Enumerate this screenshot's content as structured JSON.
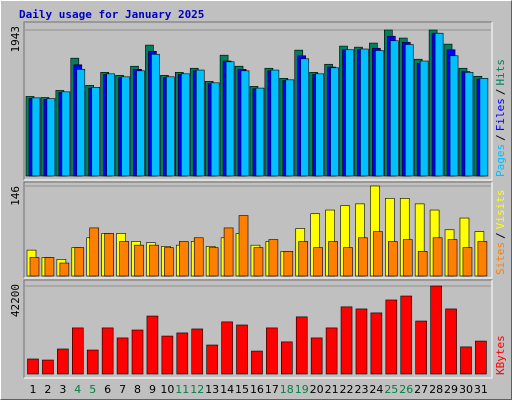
{
  "title": "Daily usage for January 2025",
  "legend_separator": "/",
  "weekend_index": [
    3,
    4,
    10,
    11,
    17,
    18,
    24,
    25
  ],
  "weekday_color": "#000000",
  "weekend_color": "#008040",
  "chart_data": [
    {
      "type": "bar",
      "ylim": [
        0,
        1943
      ],
      "yticks": [
        1943
      ],
      "series": [
        {
          "name": "Hits",
          "color": "#00805c",
          "values": [
            1059,
            1045,
            1139,
            1568,
            1206,
            1380,
            1340,
            1461,
            1742,
            1340,
            1380,
            1434,
            1260,
            1608,
            1461,
            1193,
            1434,
            1300,
            1675,
            1380,
            1487,
            1729,
            1715,
            1769,
            1943,
            1836,
            1554,
            1943,
            1755,
            1434,
            1327
          ]
        },
        {
          "name": "Files",
          "color": "#0000ff",
          "values": [
            1030,
            1020,
            1110,
            1480,
            1170,
            1350,
            1310,
            1420,
            1660,
            1310,
            1350,
            1400,
            1230,
            1530,
            1420,
            1160,
            1400,
            1270,
            1600,
            1350,
            1450,
            1680,
            1680,
            1700,
            1860,
            1780,
            1500,
            1900,
            1680,
            1390,
            1290
          ]
        },
        {
          "name": "Pages",
          "color": "#00c0ff",
          "values": [
            1040,
            1030,
            1120,
            1420,
            1180,
            1360,
            1320,
            1400,
            1620,
            1320,
            1360,
            1410,
            1240,
            1520,
            1400,
            1170,
            1410,
            1280,
            1560,
            1360,
            1440,
            1680,
            1690,
            1670,
            1800,
            1750,
            1530,
            1900,
            1600,
            1380,
            1300
          ]
        }
      ]
    },
    {
      "type": "bar",
      "ylim": [
        0,
        146
      ],
      "yticks": [
        146
      ],
      "series": [
        {
          "name": "Visits",
          "color": "#ffff00",
          "values": [
            42,
            30,
            27,
            46,
            62,
            69,
            69,
            56,
            54,
            48,
            50,
            56,
            48,
            62,
            69,
            50,
            56,
            40,
            77,
            101,
            107,
            114,
            117,
            146,
            126,
            126,
            117,
            107,
            75,
            94,
            72
          ]
        },
        {
          "name": "Sites",
          "color": "#ff8000",
          "values": [
            30,
            30,
            21,
            46,
            78,
            69,
            56,
            50,
            50,
            46,
            56,
            62,
            46,
            78,
            98,
            46,
            59,
            40,
            56,
            46,
            56,
            46,
            62,
            72,
            56,
            59,
            40,
            62,
            59,
            46,
            56
          ]
        }
      ]
    },
    {
      "type": "bar",
      "ylim": [
        0,
        42200
      ],
      "yticks": [
        42200
      ],
      "categories": [
        "1",
        "2",
        "3",
        "4",
        "5",
        "6",
        "7",
        "8",
        "9",
        "10",
        "11",
        "12",
        "13",
        "14",
        "15",
        "16",
        "17",
        "18",
        "19",
        "20",
        "21",
        "22",
        "23",
        "24",
        "25",
        "26",
        "27",
        "28",
        "29",
        "30",
        "31"
      ],
      "series": [
        {
          "name": "KBytes",
          "color": "#ff0000",
          "values": [
            7200,
            6700,
            12000,
            22100,
            11500,
            22100,
            17300,
            21100,
            27800,
            18200,
            19700,
            21600,
            13900,
            25000,
            23500,
            11000,
            22100,
            15400,
            27400,
            17300,
            22100,
            32200,
            31200,
            29300,
            35500,
            37400,
            25400,
            42200,
            31200,
            13000,
            15800
          ]
        }
      ]
    }
  ]
}
